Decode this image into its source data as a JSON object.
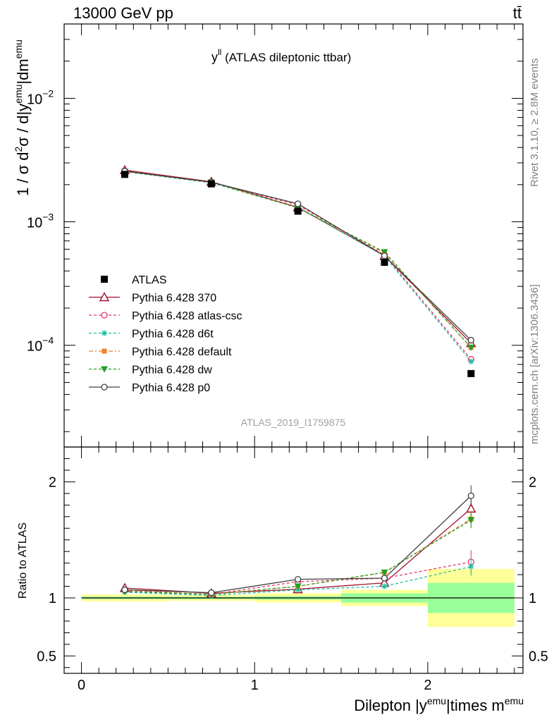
{
  "header": {
    "left": "13000 GeV pp",
    "right": "tt̄"
  },
  "side_texts": {
    "rivet": "Rivet 3.1.10, ≥ 2.8M events",
    "mcplots": "mcplots.cern.ch [arXiv:1306.3436]"
  },
  "chart_data": [
    {
      "type": "scatter",
      "title": "yˡˡ (ATLAS dileptonic ttbar)",
      "title_main": "y",
      "title_sup": "ll",
      "title_rest": " (ATLAS dileptonic ttbar)",
      "watermark": "ATLAS_2019_I1759875",
      "ylabel": "1 / σ d²σ / d|yᵉᵐᵘ|dmᵉᵐᵘ",
      "ylabel_parts": {
        "a": "1 / σ d",
        "b": "2",
        "c": "σ / d|y",
        "d": "emu",
        "e": "|dm",
        "f": "emu"
      },
      "yscale": "log",
      "ylim": [
        1.5e-05,
        0.04
      ],
      "xlim": [
        -0.1,
        2.55
      ],
      "y_ticks": [
        {
          "value": 0.0001,
          "base": "10",
          "exp": "−4"
        },
        {
          "value": 0.001,
          "base": "10",
          "exp": "−3"
        },
        {
          "value": 0.01,
          "base": "10",
          "exp": "−2"
        }
      ],
      "legend_position": "middle-left",
      "x": [
        0.25,
        0.75,
        1.25,
        1.75,
        2.25
      ],
      "data": {
        "name": "ATLAS",
        "values": [
          0.00242,
          0.00203,
          0.00122,
          0.00047,
          5.9e-05
        ],
        "color": "#000000"
      },
      "series": [
        {
          "name": "Pythia 6.428 370",
          "values": [
            0.00262,
            0.00211,
            0.00131,
            0.00053,
            0.000104
          ],
          "color": "#a0102a",
          "marker": "open-triangle",
          "dash": ""
        },
        {
          "name": "Pythia 6.428 atlas-csc",
          "values": [
            0.00258,
            0.00208,
            0.00137,
            0.00054,
            7.7e-05
          ],
          "color": "#e8356e",
          "marker": "open-circle",
          "dash": "4,3"
        },
        {
          "name": "Pythia 6.428 d6t",
          "values": [
            0.00255,
            0.00207,
            0.0013,
            0.00053,
            7.4e-05
          ],
          "color": "#1fbfa0",
          "marker": "star",
          "dash": "4,3"
        },
        {
          "name": "Pythia 6.428 default",
          "values": [
            0.00258,
            0.00209,
            0.0013,
            0.00056,
            9.6e-05
          ],
          "color": "#f08030",
          "marker": "filled-square",
          "dash": "6,3,2,3"
        },
        {
          "name": "Pythia 6.428 dw",
          "values": [
            0.00256,
            0.00209,
            0.0013,
            0.00057,
            9.6e-05
          ],
          "color": "#22a022",
          "marker": "filled-down-triangle",
          "dash": "4,3"
        },
        {
          "name": "Pythia 6.428 p0",
          "values": [
            0.00257,
            0.00209,
            0.0014,
            0.00053,
            0.00011
          ],
          "color": "#404040",
          "marker": "open-circle",
          "dash": ""
        }
      ]
    },
    {
      "type": "scatter",
      "ylabel": "Ratio to ATLAS",
      "xlabel": "Dilepton |yᵉᵐᵘ|times mᵉᵐᵘ",
      "xlabel_parts": {
        "a": "Dilepton |y",
        "b": "emu",
        "c": "|times m",
        "d": "emu"
      },
      "ylim": [
        0.35,
        2.3
      ],
      "xlim": [
        -0.1,
        2.55
      ],
      "y_ticks": [
        "0.5",
        "1",
        "2"
      ],
      "y_tick_values": [
        0.5,
        1,
        2
      ],
      "x_ticks": [
        "0",
        "1",
        "2"
      ],
      "x_tick_values": [
        0,
        1,
        2
      ],
      "x": [
        0.25,
        0.75,
        1.25,
        1.75,
        2.25
      ],
      "bins": [
        [
          0,
          0.5
        ],
        [
          0.5,
          1.0
        ],
        [
          1.0,
          1.5
        ],
        [
          1.5,
          2.0
        ],
        [
          2.0,
          2.5
        ]
      ],
      "band_inner": [
        [
          0.99,
          1.01
        ],
        [
          0.99,
          1.01
        ],
        [
          0.985,
          1.015
        ],
        [
          0.96,
          1.04
        ],
        [
          0.87,
          1.13
        ]
      ],
      "band_outer": [
        [
          0.97,
          1.03
        ],
        [
          0.975,
          1.025
        ],
        [
          0.96,
          1.04
        ],
        [
          0.93,
          1.07
        ],
        [
          0.75,
          1.25
        ]
      ],
      "series": [
        {
          "name": "Pythia 6.428 370",
          "values": [
            1.085,
            1.04,
            1.075,
            1.13,
            1.77
          ]
        },
        {
          "name": "Pythia 6.428 atlas-csc",
          "values": [
            1.065,
            1.03,
            1.14,
            1.17,
            1.31
          ]
        },
        {
          "name": "Pythia 6.428 d6t",
          "values": [
            1.05,
            1.02,
            1.07,
            1.1,
            1.27
          ]
        },
        {
          "name": "Pythia 6.428 default",
          "values": [
            1.065,
            1.03,
            1.1,
            1.22,
            1.68
          ]
        },
        {
          "name": "Pythia 6.428 dw",
          "values": [
            1.055,
            1.03,
            1.1,
            1.22,
            1.67
          ]
        },
        {
          "name": "Pythia 6.428 p0",
          "values": [
            1.07,
            1.045,
            1.16,
            1.17,
            1.88
          ]
        }
      ],
      "errors_last": [
        0.08,
        0.1,
        0.08,
        0.07,
        0.07,
        0.09
      ]
    }
  ]
}
